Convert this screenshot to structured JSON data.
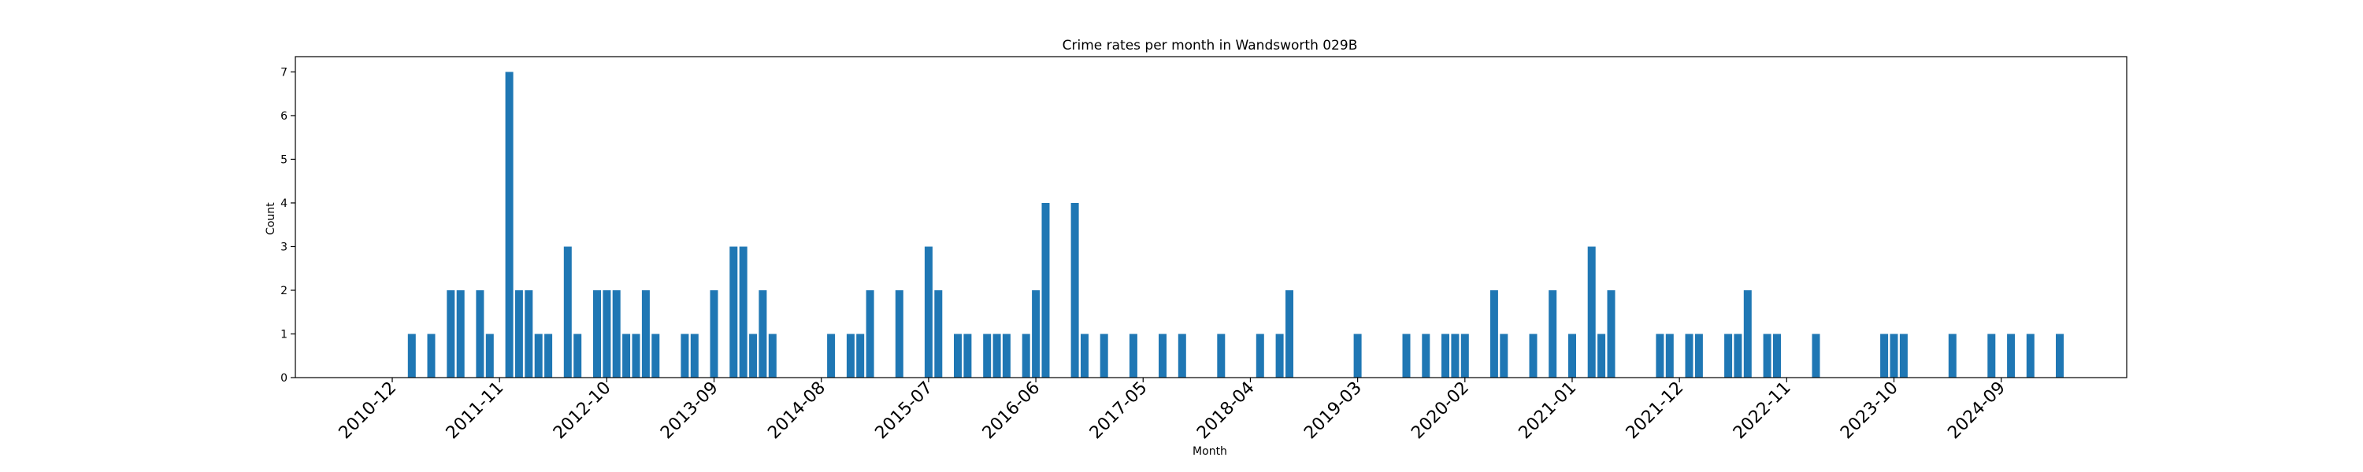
{
  "chart_data": {
    "type": "bar",
    "title": "Crime rates per month in Wandsworth 029B",
    "xlabel": "Month",
    "ylabel": "Count",
    "ylim": [
      0,
      7.35
    ],
    "yticks": [
      0,
      1,
      2,
      3,
      4,
      5,
      6,
      7
    ],
    "xtick_labels": [
      "2010-12",
      "2011-11",
      "2012-10",
      "2013-09",
      "2014-08",
      "2015-07",
      "2016-06",
      "2017-05",
      "2018-04",
      "2019-03",
      "2020-02",
      "2021-01",
      "2021-12",
      "2022-11",
      "2023-10",
      "2024-09"
    ],
    "grid": false,
    "bar_color": "#1f77b4",
    "categories": [
      "2011-02",
      "2011-04",
      "2011-06",
      "2011-07",
      "2011-09",
      "2011-10",
      "2011-12",
      "2012-01",
      "2012-02",
      "2012-03",
      "2012-04",
      "2012-06",
      "2012-07",
      "2012-09",
      "2012-10",
      "2012-11",
      "2012-12",
      "2013-01",
      "2013-02",
      "2013-03",
      "2013-06",
      "2013-07",
      "2013-09",
      "2013-11",
      "2013-12",
      "2014-01",
      "2014-02",
      "2014-03",
      "2014-09",
      "2014-11",
      "2014-12",
      "2015-01",
      "2015-04",
      "2015-07",
      "2015-08",
      "2015-10",
      "2015-11",
      "2016-01",
      "2016-02",
      "2016-03",
      "2016-05",
      "2016-06",
      "2016-07",
      "2016-10",
      "2016-11",
      "2017-01",
      "2017-04",
      "2017-07",
      "2017-09",
      "2018-01",
      "2018-05",
      "2018-07",
      "2018-08",
      "2019-03",
      "2019-08",
      "2019-10",
      "2019-12",
      "2020-01",
      "2020-02",
      "2020-05",
      "2020-06",
      "2020-09",
      "2020-11",
      "2021-01",
      "2021-03",
      "2021-04",
      "2021-05",
      "2021-10",
      "2021-11",
      "2022-01",
      "2022-02",
      "2022-05",
      "2022-06",
      "2022-07",
      "2022-09",
      "2022-10",
      "2023-02",
      "2023-09",
      "2023-10",
      "2023-11",
      "2024-04",
      "2024-08",
      "2024-10",
      "2024-12",
      "2025-03"
    ],
    "values": [
      1,
      1,
      2,
      2,
      2,
      1,
      7,
      2,
      2,
      1,
      1,
      3,
      1,
      2,
      2,
      2,
      1,
      1,
      2,
      1,
      1,
      1,
      2,
      3,
      3,
      1,
      2,
      1,
      1,
      1,
      1,
      2,
      2,
      3,
      2,
      1,
      1,
      1,
      1,
      1,
      1,
      2,
      4,
      4,
      1,
      1,
      1,
      1,
      1,
      1,
      1,
      1,
      2,
      1,
      1,
      1,
      1,
      1,
      1,
      2,
      1,
      1,
      2,
      1,
      3,
      1,
      2,
      1,
      1,
      1,
      1,
      1,
      1,
      2,
      1,
      1,
      1,
      1,
      1,
      1,
      1,
      1,
      1,
      1,
      1
    ]
  }
}
